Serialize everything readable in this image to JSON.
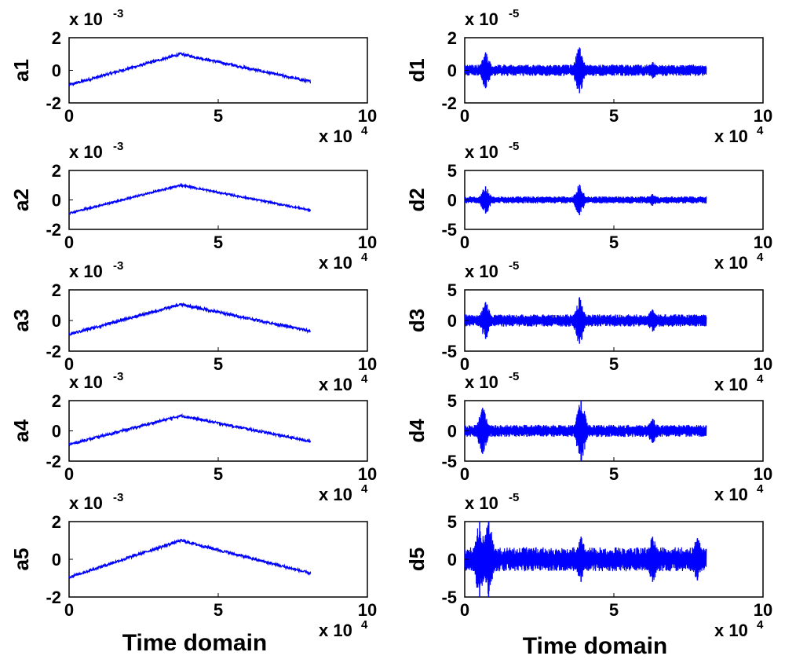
{
  "x_exponent_label": "x 10",
  "x_exponent": "4",
  "y_exponent_base": "x 10",
  "colors": {
    "signal": "#0000ff",
    "axes": "#000000",
    "background": "#ffffff"
  },
  "columns": [
    {
      "xlabel": "Time domain",
      "y_exponent": "-3"
    },
    {
      "xlabel": "Time domain",
      "y_exponent": "-5"
    }
  ],
  "chart_data": [
    {
      "type": "line",
      "ylabel": "a1",
      "y_scale_exponent": -3,
      "xlim": [
        0,
        10
      ],
      "ylim": [
        -2,
        2
      ],
      "yticks": [
        -2,
        0,
        2
      ],
      "xticks": [
        0,
        5,
        10
      ],
      "series": [
        {
          "kind": "triangle",
          "x": [
            0,
            3.75,
            8.1
          ],
          "values": [
            -0.9,
            1.0,
            -0.7
          ],
          "noise": 0.08
        }
      ]
    },
    {
      "type": "line",
      "ylabel": "d1",
      "y_scale_exponent": -5,
      "xlim": [
        0,
        10
      ],
      "ylim": [
        -2,
        2
      ],
      "yticks": [
        -2,
        0,
        2
      ],
      "xticks": [
        0,
        5,
        10
      ],
      "series": [
        {
          "kind": "detail",
          "x_range": [
            0,
            8.1
          ],
          "base_amplitude": 0.35,
          "bursts": [
            {
              "x": 0.7,
              "amplitude": 1.1
            },
            {
              "x": 3.85,
              "amplitude": 1.4
            },
            {
              "x": 6.3,
              "amplitude": 0.5
            }
          ]
        }
      ]
    },
    {
      "type": "line",
      "ylabel": "a2",
      "y_scale_exponent": -3,
      "xlim": [
        0,
        10
      ],
      "ylim": [
        -2,
        2
      ],
      "yticks": [
        -2,
        0,
        2
      ],
      "xticks": [
        0,
        5,
        10
      ],
      "series": [
        {
          "kind": "triangle",
          "x": [
            0,
            3.75,
            8.1
          ],
          "values": [
            -0.9,
            1.0,
            -0.7
          ],
          "noise": 0.06
        }
      ]
    },
    {
      "type": "line",
      "ylabel": "d2",
      "y_scale_exponent": -5,
      "xlim": [
        0,
        10
      ],
      "ylim": [
        -5,
        5
      ],
      "yticks": [
        -5,
        0,
        5
      ],
      "xticks": [
        0,
        5,
        10
      ],
      "series": [
        {
          "kind": "detail",
          "x_range": [
            0,
            8.1
          ],
          "base_amplitude": 0.6,
          "bursts": [
            {
              "x": 0.7,
              "amplitude": 2.3
            },
            {
              "x": 3.85,
              "amplitude": 2.6
            },
            {
              "x": 6.3,
              "amplitude": 1.0
            }
          ]
        }
      ]
    },
    {
      "type": "line",
      "ylabel": "a3",
      "y_scale_exponent": -3,
      "xlim": [
        0,
        10
      ],
      "ylim": [
        -2,
        2
      ],
      "yticks": [
        -2,
        0,
        2
      ],
      "xticks": [
        0,
        5,
        10
      ],
      "series": [
        {
          "kind": "triangle",
          "x": [
            0,
            3.75,
            8.1
          ],
          "values": [
            -0.9,
            1.05,
            -0.7
          ],
          "noise": 0.09
        }
      ]
    },
    {
      "type": "line",
      "ylabel": "d3",
      "y_scale_exponent": -5,
      "xlim": [
        0,
        10
      ],
      "ylim": [
        -5,
        5
      ],
      "yticks": [
        -5,
        0,
        5
      ],
      "xticks": [
        0,
        5,
        10
      ],
      "series": [
        {
          "kind": "detail",
          "x_range": [
            0,
            8.1
          ],
          "base_amplitude": 1.0,
          "bursts": [
            {
              "x": 0.7,
              "amplitude": 3.0
            },
            {
              "x": 3.85,
              "amplitude": 3.8
            },
            {
              "x": 6.3,
              "amplitude": 1.8
            }
          ]
        }
      ]
    },
    {
      "type": "line",
      "ylabel": "a4",
      "y_scale_exponent": -3,
      "xlim": [
        0,
        10
      ],
      "ylim": [
        -2,
        2
      ],
      "yticks": [
        -2,
        0,
        2
      ],
      "xticks": [
        0,
        5,
        10
      ],
      "series": [
        {
          "kind": "triangle",
          "x": [
            0,
            3.75,
            8.1
          ],
          "values": [
            -0.9,
            1.0,
            -0.7
          ],
          "noise": 0.08
        }
      ]
    },
    {
      "type": "line",
      "ylabel": "d4",
      "y_scale_exponent": -5,
      "xlim": [
        0,
        10
      ],
      "ylim": [
        -5,
        5
      ],
      "yticks": [
        -5,
        0,
        5
      ],
      "xticks": [
        0,
        5,
        10
      ],
      "series": [
        {
          "kind": "detail",
          "x_range": [
            0,
            8.1
          ],
          "base_amplitude": 1.0,
          "bursts": [
            {
              "x": 0.6,
              "amplitude": 3.8
            },
            {
              "x": 3.9,
              "amplitude": 5.0
            },
            {
              "x": 6.3,
              "amplitude": 2.0
            }
          ]
        }
      ]
    },
    {
      "type": "line",
      "ylabel": "a5",
      "y_scale_exponent": -3,
      "xlim": [
        0,
        10
      ],
      "ylim": [
        -2,
        2
      ],
      "yticks": [
        -2,
        0,
        2
      ],
      "xticks": [
        0,
        5,
        10
      ],
      "series": [
        {
          "kind": "triangle",
          "x": [
            0,
            3.75,
            8.1
          ],
          "values": [
            -0.95,
            1.0,
            -0.75
          ],
          "noise": 0.07
        }
      ]
    },
    {
      "type": "line",
      "ylabel": "d5",
      "y_scale_exponent": -5,
      "xlim": [
        0,
        10
      ],
      "ylim": [
        -5,
        5
      ],
      "yticks": [
        -5,
        0,
        5
      ],
      "xticks": [
        0,
        5,
        10
      ],
      "series": [
        {
          "kind": "detail",
          "x_range": [
            0,
            8.1
          ],
          "base_amplitude": 1.6,
          "bursts": [
            {
              "x": 0.5,
              "amplitude": 5.0
            },
            {
              "x": 0.8,
              "amplitude": 5.0
            },
            {
              "x": 3.9,
              "amplitude": 3.0
            },
            {
              "x": 6.3,
              "amplitude": 3.0
            },
            {
              "x": 7.8,
              "amplitude": 2.8
            }
          ]
        }
      ]
    }
  ]
}
